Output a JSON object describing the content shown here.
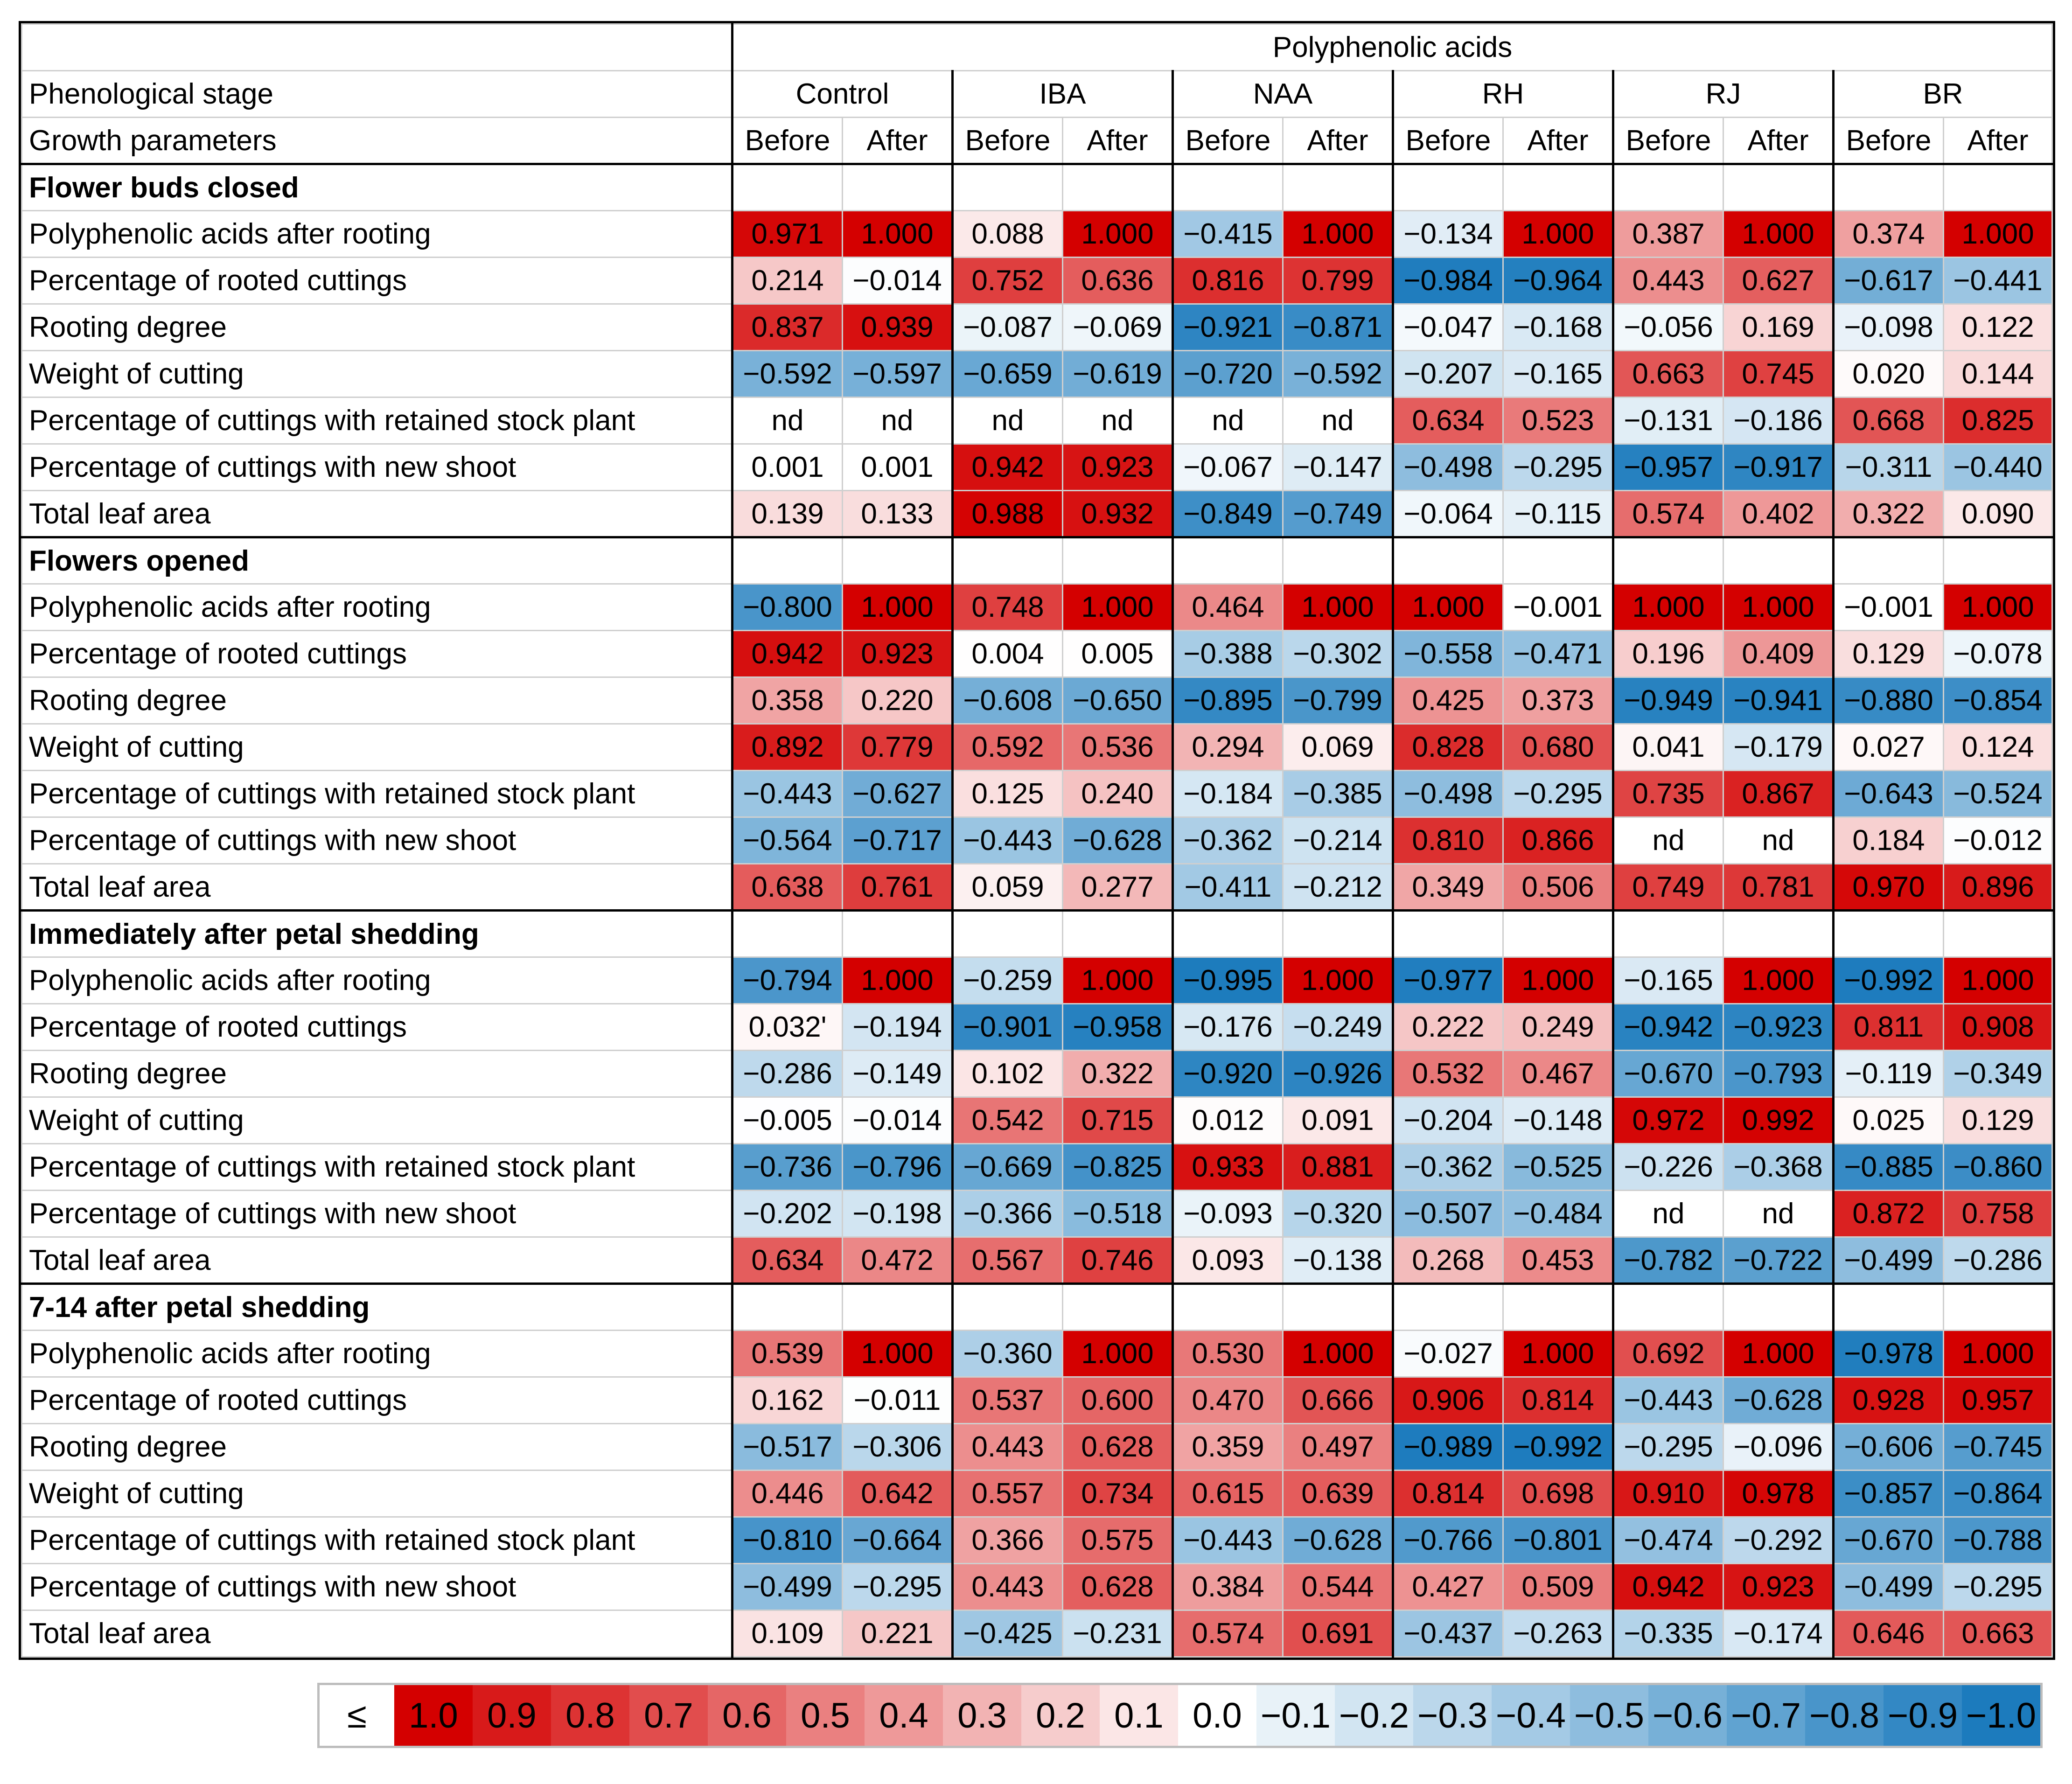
{
  "chart_data": {
    "type": "heatmap",
    "title": "Polyphenolic acids",
    "row_header_labels": {
      "phenological": "Phenological stage",
      "growth": "Growth parameters"
    },
    "treatments": [
      "Control",
      "IBA",
      "NAA",
      "RH",
      "RJ",
      "BR"
    ],
    "timepoints": [
      "Before",
      "After"
    ],
    "color_scale": {
      "min": -1.0,
      "max": 1.0,
      "neg_color": "#1c7bbd",
      "pos_color": "#d40000",
      "zero_color": "#ffffff"
    },
    "sections": [
      {
        "stage": "Flower buds closed",
        "rows": [
          {
            "param": "Polyphenolic acids after rooting",
            "values": [
              "0.971",
              "1.000",
              "0.088",
              "1.000",
              "−0.415",
              "1.000",
              "−0.134",
              "1.000",
              "0.387",
              "1.000",
              "0.374",
              "1.000"
            ]
          },
          {
            "param": "Percentage of rooted cuttings",
            "values": [
              "0.214",
              "−0.014",
              "0.752",
              "0.636",
              "0.816",
              "0.799",
              "−0.984",
              "−0.964",
              "0.443",
              "0.627",
              "−0.617",
              "−0.441"
            ]
          },
          {
            "param": "Rooting degree",
            "values": [
              "0.837",
              "0.939",
              "−0.087",
              "−0.069",
              "−0.921",
              "−0.871",
              "−0.047",
              "−0.168",
              "−0.056",
              "0.169",
              "−0.098",
              "0.122"
            ]
          },
          {
            "param": "Weight of cutting",
            "values": [
              "−0.592",
              "−0.597",
              "−0.659",
              "−0.619",
              "−0.720",
              "−0.592",
              "−0.207",
              "−0.165",
              "0.663",
              "0.745",
              "0.020",
              "0.144"
            ]
          },
          {
            "param": "Percentage of cuttings with retained stock plant",
            "values": [
              "nd",
              "nd",
              "nd",
              "nd",
              "nd",
              "nd",
              "0.634",
              "0.523",
              "−0.131",
              "−0.186",
              "0.668",
              "0.825"
            ]
          },
          {
            "param": "Percentage of cuttings with new shoot",
            "values": [
              "0.001",
              "0.001",
              "0.942",
              "0.923",
              "−0.067",
              "−0.147",
              "−0.498",
              "−0.295",
              "−0.957",
              "−0.917",
              "−0.311",
              "−0.440"
            ]
          },
          {
            "param": "Total leaf area",
            "values": [
              "0.139",
              "0.133",
              "0.988",
              "0.932",
              "−0.849",
              "−0.749",
              "−0.064",
              "−0.115",
              "0.574",
              "0.402",
              "0.322",
              "0.090"
            ]
          }
        ]
      },
      {
        "stage": "Flowers opened",
        "rows": [
          {
            "param": "Polyphenolic acids after rooting",
            "values": [
              "−0.800",
              "1.000",
              "0.748",
              "1.000",
              "0.464",
              "1.000",
              "1.000",
              "−0.001",
              "1.000",
              "1.000",
              "−0.001",
              "1.000"
            ]
          },
          {
            "param": "Percentage of rooted cuttings",
            "values": [
              "0.942",
              "0.923",
              "0.004",
              "0.005",
              "−0.388",
              "−0.302",
              "−0.558",
              "−0.471",
              "0.196",
              "0.409",
              "0.129",
              "−0.078"
            ]
          },
          {
            "param": "Rooting degree",
            "values": [
              "0.358",
              "0.220",
              "−0.608",
              "−0.650",
              "−0.895",
              "−0.799",
              "0.425",
              "0.373",
              "−0.949",
              "−0.941",
              "−0.880",
              "−0.854"
            ]
          },
          {
            "param": "Weight of cutting",
            "values": [
              "0.892",
              "0.779",
              "0.592",
              "0.536",
              "0.294",
              "0.069",
              "0.828",
              "0.680",
              "0.041",
              "−0.179",
              "0.027",
              "0.124"
            ]
          },
          {
            "param": "Percentage of cuttings with retained stock plant",
            "values": [
              "−0.443",
              "−0.627",
              "0.125",
              "0.240",
              "−0.184",
              "−0.385",
              "−0.498",
              "−0.295",
              "0.735",
              "0.867",
              "−0.643",
              "−0.524"
            ]
          },
          {
            "param": "Percentage of cuttings with new shoot",
            "values": [
              "−0.564",
              "−0.717",
              "−0.443",
              "−0.628",
              "−0.362",
              "−0.214",
              "0.810",
              "0.866",
              "nd",
              "nd",
              "0.184",
              "−0.012"
            ]
          },
          {
            "param": "Total leaf area",
            "values": [
              "0.638",
              "0.761",
              "0.059",
              "0.277",
              "−0.411",
              "−0.212",
              "0.349",
              "0.506",
              "0.749",
              "0.781",
              "0.970",
              "0.896"
            ]
          }
        ]
      },
      {
        "stage": "Immediately after petal shedding",
        "rows": [
          {
            "param": "Polyphenolic acids after rooting",
            "values": [
              "−0.794",
              "1.000",
              "−0.259",
              "1.000",
              "−0.995",
              "1.000",
              "−0.977",
              "1.000",
              "−0.165",
              "1.000",
              "−0.992",
              "1.000"
            ]
          },
          {
            "param": "Percentage of rooted cuttings",
            "values": [
              "0.032'",
              "−0.194",
              "−0.901",
              "−0.958",
              "−0.176",
              "−0.249",
              "0.222",
              "0.249",
              "−0.942",
              "−0.923",
              "0.811",
              "0.908"
            ]
          },
          {
            "param": "Rooting degree",
            "values": [
              "−0.286",
              "−0.149",
              "0.102",
              "0.322",
              "−0.920",
              "−0.926",
              "0.532",
              "0.467",
              "−0.670",
              "−0.793",
              "−0.119",
              "−0.349"
            ]
          },
          {
            "param": "Weight of cutting",
            "values": [
              "−0.005",
              "−0.014",
              "0.542",
              "0.715",
              "0.012",
              "0.091",
              "−0.204",
              "−0.148",
              "0.972",
              "0.992",
              "0.025",
              "0.129"
            ]
          },
          {
            "param": "Percentage of cuttings with retained stock plant",
            "values": [
              "−0.736",
              "−0.796",
              "−0.669",
              "−0.825",
              "0.933",
              "0.881",
              "−0.362",
              "−0.525",
              "−0.226",
              "−0.368",
              "−0.885",
              "−0.860"
            ]
          },
          {
            "param": "Percentage of cuttings with new shoot",
            "values": [
              "−0.202",
              "−0.198",
              "−0.366",
              "−0.518",
              "−0.093",
              "−0.320",
              "−0.507",
              "−0.484",
              "nd",
              "nd",
              "0.872",
              "0.758"
            ]
          },
          {
            "param": "Total leaf area",
            "values": [
              "0.634",
              "0.472",
              "0.567",
              "0.746",
              "0.093",
              "−0.138",
              "0.268",
              "0.453",
              "−0.782",
              "−0.722",
              "−0.499",
              "−0.286"
            ]
          }
        ]
      },
      {
        "stage": "7-14 after petal shedding",
        "rows": [
          {
            "param": "Polyphenolic acids after rooting",
            "values": [
              "0.539",
              "1.000",
              "−0.360",
              "1.000",
              "0.530",
              "1.000",
              "−0.027",
              "1.000",
              "0.692",
              "1.000",
              "−0.978",
              "1.000"
            ]
          },
          {
            "param": "Percentage of rooted cuttings",
            "values": [
              "0.162",
              "−0.011",
              "0.537",
              "0.600",
              "0.470",
              "0.666",
              "0.906",
              "0.814",
              "−0.443",
              "−0.628",
              "0.928",
              "0.957"
            ]
          },
          {
            "param": "Rooting degree",
            "values": [
              "−0.517",
              "−0.306",
              "0.443",
              "0.628",
              "0.359",
              "0.497",
              "−0.989",
              "−0.992",
              "−0.295",
              "−0.096",
              "−0.606",
              "−0.745"
            ]
          },
          {
            "param": "Weight of cutting",
            "values": [
              "0.446",
              "0.642",
              "0.557",
              "0.734",
              "0.615",
              "0.639",
              "0.814",
              "0.698",
              "0.910",
              "0.978",
              "−0.857",
              "−0.864"
            ]
          },
          {
            "param": "Percentage of cuttings with retained stock plant",
            "values": [
              "−0.810",
              "−0.664",
              "0.366",
              "0.575",
              "−0.443",
              "−0.628",
              "−0.766",
              "−0.801",
              "−0.474",
              "−0.292",
              "−0.670",
              "−0.788"
            ]
          },
          {
            "param": "Percentage of cuttings with new shoot",
            "values": [
              "−0.499",
              "−0.295",
              "0.443",
              "0.628",
              "0.384",
              "0.544",
              "0.427",
              "0.509",
              "0.942",
              "0.923",
              "−0.499",
              "−0.295"
            ]
          },
          {
            "param": "Total leaf area",
            "values": [
              "0.109",
              "0.221",
              "−0.425",
              "−0.231",
              "0.574",
              "0.691",
              "−0.437",
              "−0.263",
              "−0.335",
              "−0.174",
              "0.646",
              "0.663"
            ]
          }
        ]
      }
    ],
    "legend": {
      "prefix": "≤",
      "labels": [
        "1.0",
        "0.9",
        "0.8",
        "0.7",
        "0.6",
        "0.5",
        "0.4",
        "0.3",
        "0.2",
        "0.1",
        "0.0",
        "−0.1",
        "−0.2",
        "−0.3",
        "−0.4",
        "−0.5",
        "−0.6",
        "−0.7",
        "−0.8",
        "−0.9",
        "−1.0"
      ]
    }
  }
}
